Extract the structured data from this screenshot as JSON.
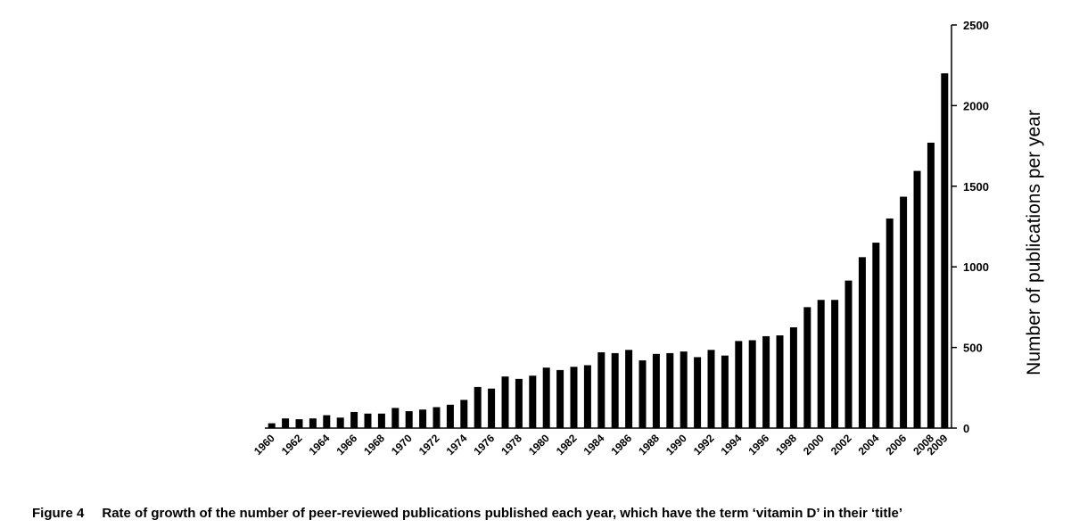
{
  "chart_data": {
    "type": "bar",
    "caption_label": "Figure 4",
    "caption": "Rate of growth of the number of peer-reviewed publications published each year, which have the term ‘vitamin D’ in their ‘title’",
    "y_label": "Number of publications per year",
    "categories": [
      "1960",
      null,
      "1962",
      null,
      "1964",
      null,
      "1966",
      null,
      "1968",
      null,
      "1970",
      null,
      "1972",
      null,
      "1974",
      null,
      "1976",
      null,
      "1978",
      null,
      "1980",
      null,
      "1982",
      null,
      "1984",
      null,
      "1986",
      null,
      "1988",
      null,
      "1990",
      null,
      "1992",
      null,
      "1994",
      null,
      "1996",
      null,
      "1998",
      null,
      "2000",
      null,
      "2002",
      null,
      "2004",
      null,
      "2006",
      null,
      "2008",
      "2009"
    ],
    "values": [
      30,
      60,
      55,
      60,
      80,
      65,
      100,
      90,
      90,
      125,
      105,
      115,
      130,
      145,
      175,
      255,
      245,
      320,
      305,
      325,
      375,
      360,
      380,
      390,
      470,
      465,
      485,
      420,
      460,
      465,
      475,
      440,
      485,
      450,
      540,
      545,
      570,
      575,
      625,
      750,
      795,
      795,
      915,
      1060,
      1150,
      1300,
      1435,
      1595,
      1770,
      2200
    ],
    "color": "#000000",
    "ylim": [
      0,
      2500
    ],
    "yticks": [
      0,
      500,
      1000,
      1500,
      2000,
      2500
    ],
    "grid": false
  }
}
